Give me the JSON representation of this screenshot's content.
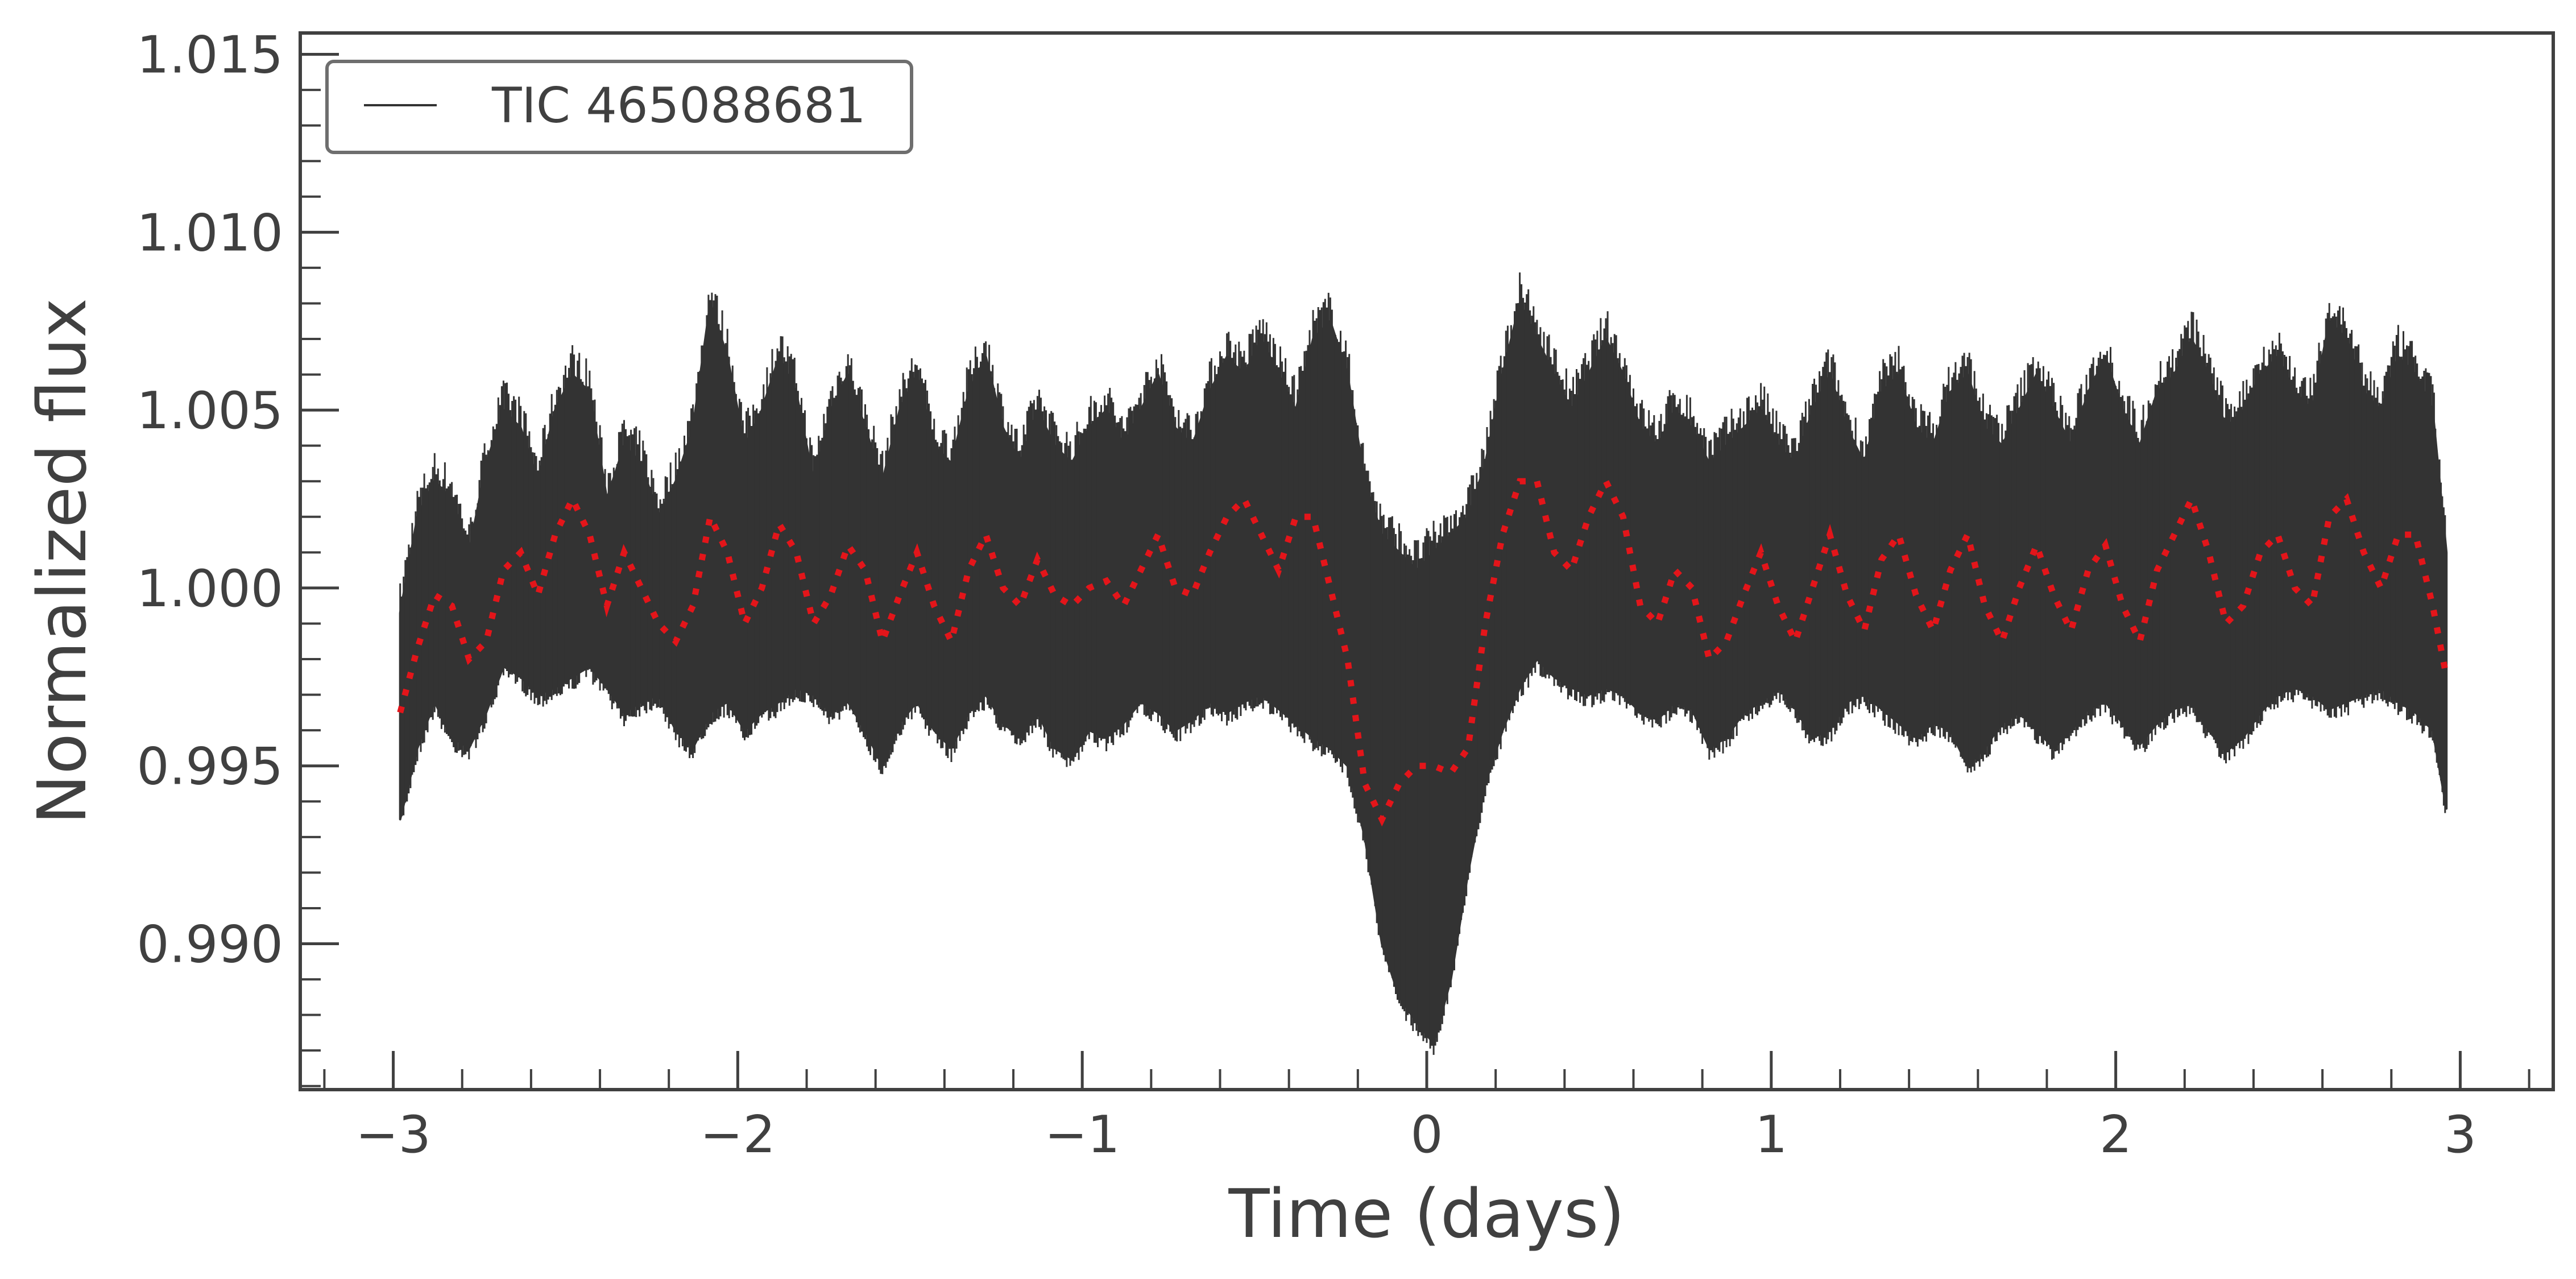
{
  "chart_data": {
    "type": "line",
    "xlabel": "Time (days)",
    "ylabel": "Normalized flux",
    "xlim": [
      -3.27,
      3.27
    ],
    "ylim": [
      0.9859,
      1.0156
    ],
    "x_ticks": [
      {
        "value": -3,
        "label": "−3"
      },
      {
        "value": -2,
        "label": "−2"
      },
      {
        "value": -1,
        "label": "−1"
      },
      {
        "value": 0,
        "label": "0"
      },
      {
        "value": 1,
        "label": "1"
      },
      {
        "value": 2,
        "label": "2"
      },
      {
        "value": 3,
        "label": "3"
      }
    ],
    "y_ticks": [
      {
        "value": 0.99,
        "label": "0.990"
      },
      {
        "value": 0.995,
        "label": "0.995"
      },
      {
        "value": 1.0,
        "label": "1.000"
      },
      {
        "value": 1.005,
        "label": "1.005"
      },
      {
        "value": 1.01,
        "label": "1.010"
      },
      {
        "value": 1.015,
        "label": "1.015"
      }
    ],
    "grid": false,
    "legend": {
      "position": "top-left",
      "entries": [
        "TIC 465088681"
      ]
    },
    "series": [
      {
        "name": "TIC 465088681",
        "style": "solid",
        "color": "#333333",
        "x": [
          -2.98,
          -2.93,
          -2.88,
          -2.83,
          -2.78,
          -2.73,
          -2.68,
          -2.63,
          -2.58,
          -2.53,
          -2.48,
          -2.43,
          -2.38,
          -2.33,
          -2.28,
          -2.23,
          -2.18,
          -2.13,
          -2.08,
          -2.03,
          -1.98,
          -1.93,
          -1.88,
          -1.83,
          -1.78,
          -1.73,
          -1.68,
          -1.63,
          -1.58,
          -1.53,
          -1.48,
          -1.43,
          -1.38,
          -1.33,
          -1.28,
          -1.23,
          -1.18,
          -1.13,
          -1.08,
          -1.03,
          -0.98,
          -0.93,
          -0.88,
          -0.83,
          -0.78,
          -0.73,
          -0.68,
          -0.63,
          -0.58,
          -0.53,
          -0.48,
          -0.43,
          -0.38,
          -0.33,
          -0.28,
          -0.23,
          -0.18,
          -0.13,
          -0.08,
          -0.03,
          0.02,
          0.07,
          0.12,
          0.17,
          0.22,
          0.27,
          0.32,
          0.37,
          0.42,
          0.47,
          0.52,
          0.57,
          0.62,
          0.67,
          0.72,
          0.77,
          0.82,
          0.87,
          0.92,
          0.97,
          1.02,
          1.07,
          1.12,
          1.17,
          1.22,
          1.27,
          1.32,
          1.37,
          1.42,
          1.47,
          1.52,
          1.57,
          1.62,
          1.67,
          1.72,
          1.77,
          1.82,
          1.87,
          1.92,
          1.97,
          2.02,
          2.07,
          2.12,
          2.17,
          2.22,
          2.27,
          2.32,
          2.37,
          2.42,
          2.47,
          2.52,
          2.57,
          2.62,
          2.67,
          2.72,
          2.77,
          2.82,
          2.87,
          2.92,
          2.96
        ],
        "y_low": [
          0.9935,
          0.9955,
          0.9968,
          0.9958,
          0.9955,
          0.9965,
          0.9978,
          0.9975,
          0.997,
          0.9972,
          0.9975,
          0.9978,
          0.9972,
          0.9965,
          0.9968,
          0.997,
          0.996,
          0.9955,
          0.9965,
          0.9968,
          0.996,
          0.9965,
          0.9968,
          0.9972,
          0.997,
          0.9965,
          0.9968,
          0.996,
          0.995,
          0.9962,
          0.9968,
          0.996,
          0.9955,
          0.9965,
          0.997,
          0.9962,
          0.9958,
          0.9965,
          0.9955,
          0.9952,
          0.996,
          0.9958,
          0.9962,
          0.9968,
          0.9965,
          0.996,
          0.9963,
          0.9968,
          0.9965,
          0.9968,
          0.997,
          0.9966,
          0.9962,
          0.9958,
          0.9955,
          0.995,
          0.993,
          0.99,
          0.9885,
          0.9878,
          0.9872,
          0.989,
          0.992,
          0.9945,
          0.996,
          0.9972,
          0.998,
          0.9975,
          0.9972,
          0.997,
          0.9972,
          0.997,
          0.9965,
          0.9963,
          0.9968,
          0.9966,
          0.9955,
          0.9958,
          0.9965,
          0.9968,
          0.9972,
          0.9966,
          0.9958,
          0.996,
          0.9968,
          0.997,
          0.9966,
          0.9962,
          0.9958,
          0.9962,
          0.996,
          0.995,
          0.9955,
          0.9962,
          0.9965,
          0.996,
          0.9955,
          0.996,
          0.9966,
          0.9968,
          0.9962,
          0.9956,
          0.9962,
          0.9966,
          0.9968,
          0.996,
          0.9954,
          0.9958,
          0.9965,
          0.997,
          0.9972,
          0.997,
          0.9966,
          0.9968,
          0.997,
          0.9972,
          0.9968,
          0.9965,
          0.996,
          0.9938
        ],
        "y_high": [
          0.9993,
          1.002,
          1.003,
          1.0025,
          1.001,
          1.0035,
          1.005,
          1.0045,
          1.003,
          1.005,
          1.006,
          1.0055,
          1.0025,
          1.004,
          1.0035,
          1.002,
          1.003,
          1.0045,
          1.008,
          1.0065,
          1.004,
          1.005,
          1.0065,
          1.0055,
          1.003,
          1.005,
          1.006,
          1.0045,
          1.003,
          1.005,
          1.006,
          1.004,
          1.0035,
          1.0055,
          1.0065,
          1.0045,
          1.0035,
          1.005,
          1.004,
          1.0035,
          1.0045,
          1.005,
          1.004,
          1.005,
          1.006,
          1.0045,
          1.004,
          1.0055,
          1.0065,
          1.006,
          1.007,
          1.006,
          1.005,
          1.007,
          1.0075,
          1.006,
          1.003,
          1.0015,
          1.001,
          1.0005,
          1.001,
          1.0015,
          1.002,
          1.0035,
          1.006,
          1.008,
          1.007,
          1.006,
          1.005,
          1.006,
          1.007,
          1.006,
          1.0045,
          1.004,
          1.005,
          1.0045,
          1.0035,
          1.004,
          1.0045,
          1.005,
          1.004,
          1.0035,
          1.005,
          1.006,
          1.0045,
          1.0035,
          1.0055,
          1.006,
          1.0045,
          1.004,
          1.0055,
          1.006,
          1.0045,
          1.004,
          1.005,
          1.006,
          1.005,
          1.004,
          1.0055,
          1.0065,
          1.005,
          1.004,
          1.0055,
          1.006,
          1.007,
          1.006,
          1.0045,
          1.005,
          1.006,
          1.0065,
          1.0055,
          1.005,
          1.0075,
          1.007,
          1.0055,
          1.005,
          1.0065,
          1.006,
          1.005,
          1.001
        ]
      },
      {
        "name": "",
        "style": "dotted",
        "color": "#e3151a",
        "x": [
          -2.98,
          -2.93,
          -2.88,
          -2.83,
          -2.78,
          -2.73,
          -2.68,
          -2.63,
          -2.58,
          -2.53,
          -2.48,
          -2.43,
          -2.38,
          -2.33,
          -2.28,
          -2.23,
          -2.18,
          -2.13,
          -2.08,
          -2.03,
          -1.98,
          -1.93,
          -1.88,
          -1.83,
          -1.78,
          -1.73,
          -1.68,
          -1.63,
          -1.58,
          -1.53,
          -1.48,
          -1.43,
          -1.38,
          -1.33,
          -1.28,
          -1.23,
          -1.18,
          -1.13,
          -1.08,
          -1.03,
          -0.98,
          -0.93,
          -0.88,
          -0.83,
          -0.78,
          -0.73,
          -0.68,
          -0.63,
          -0.58,
          -0.53,
          -0.48,
          -0.43,
          -0.38,
          -0.33,
          -0.28,
          -0.23,
          -0.18,
          -0.13,
          -0.08,
          -0.03,
          0.02,
          0.07,
          0.12,
          0.17,
          0.22,
          0.27,
          0.32,
          0.37,
          0.42,
          0.47,
          0.52,
          0.57,
          0.62,
          0.67,
          0.72,
          0.77,
          0.82,
          0.87,
          0.92,
          0.97,
          1.02,
          1.07,
          1.12,
          1.17,
          1.22,
          1.27,
          1.32,
          1.37,
          1.42,
          1.47,
          1.52,
          1.57,
          1.62,
          1.67,
          1.72,
          1.77,
          1.82,
          1.87,
          1.92,
          1.97,
          2.02,
          2.07,
          2.12,
          2.17,
          2.22,
          2.27,
          2.32,
          2.37,
          2.42,
          2.47,
          2.52,
          2.57,
          2.62,
          2.67,
          2.72,
          2.77,
          2.82,
          2.87,
          2.92,
          2.96
        ],
        "y": [
          0.9965,
          0.9983,
          0.9998,
          0.9995,
          0.998,
          0.9985,
          1.0005,
          1.001,
          0.9998,
          1.0015,
          1.0025,
          1.0015,
          0.9995,
          1.001,
          1.0,
          0.999,
          0.9985,
          0.9995,
          1.002,
          1.001,
          0.999,
          1.0,
          1.0018,
          1.001,
          0.999,
          0.9998,
          1.0012,
          1.0005,
          0.9985,
          0.9998,
          1.001,
          0.9995,
          0.9985,
          1.0005,
          1.0015,
          1.0,
          0.9995,
          1.0008,
          0.9998,
          0.9995,
          1.0,
          1.0002,
          0.9995,
          1.0005,
          1.0015,
          1.0,
          0.9998,
          1.001,
          1.002,
          1.0025,
          1.0015,
          1.0005,
          1.002,
          1.002,
          1.0,
          0.998,
          0.9945,
          0.9935,
          0.9945,
          0.995,
          0.995,
          0.9948,
          0.9955,
          0.999,
          1.0015,
          1.003,
          1.003,
          1.001,
          1.0005,
          1.002,
          1.003,
          1.002,
          0.9995,
          0.999,
          1.0005,
          1.0,
          0.998,
          0.9985,
          0.9998,
          1.001,
          0.9995,
          0.9985,
          1.0,
          1.0015,
          0.9998,
          0.9988,
          1.0008,
          1.0015,
          0.9998,
          0.9988,
          1.0005,
          1.0015,
          0.9995,
          0.9985,
          1.0,
          1.0012,
          0.9998,
          0.9988,
          1.0005,
          1.0012,
          0.9995,
          0.9985,
          1.0005,
          1.0015,
          1.0025,
          1.001,
          0.999,
          0.9995,
          1.001,
          1.0015,
          1.0,
          0.9995,
          1.002,
          1.0025,
          1.001,
          1.0,
          1.0015,
          1.0015,
          0.9995,
          0.9975
        ]
      }
    ]
  }
}
